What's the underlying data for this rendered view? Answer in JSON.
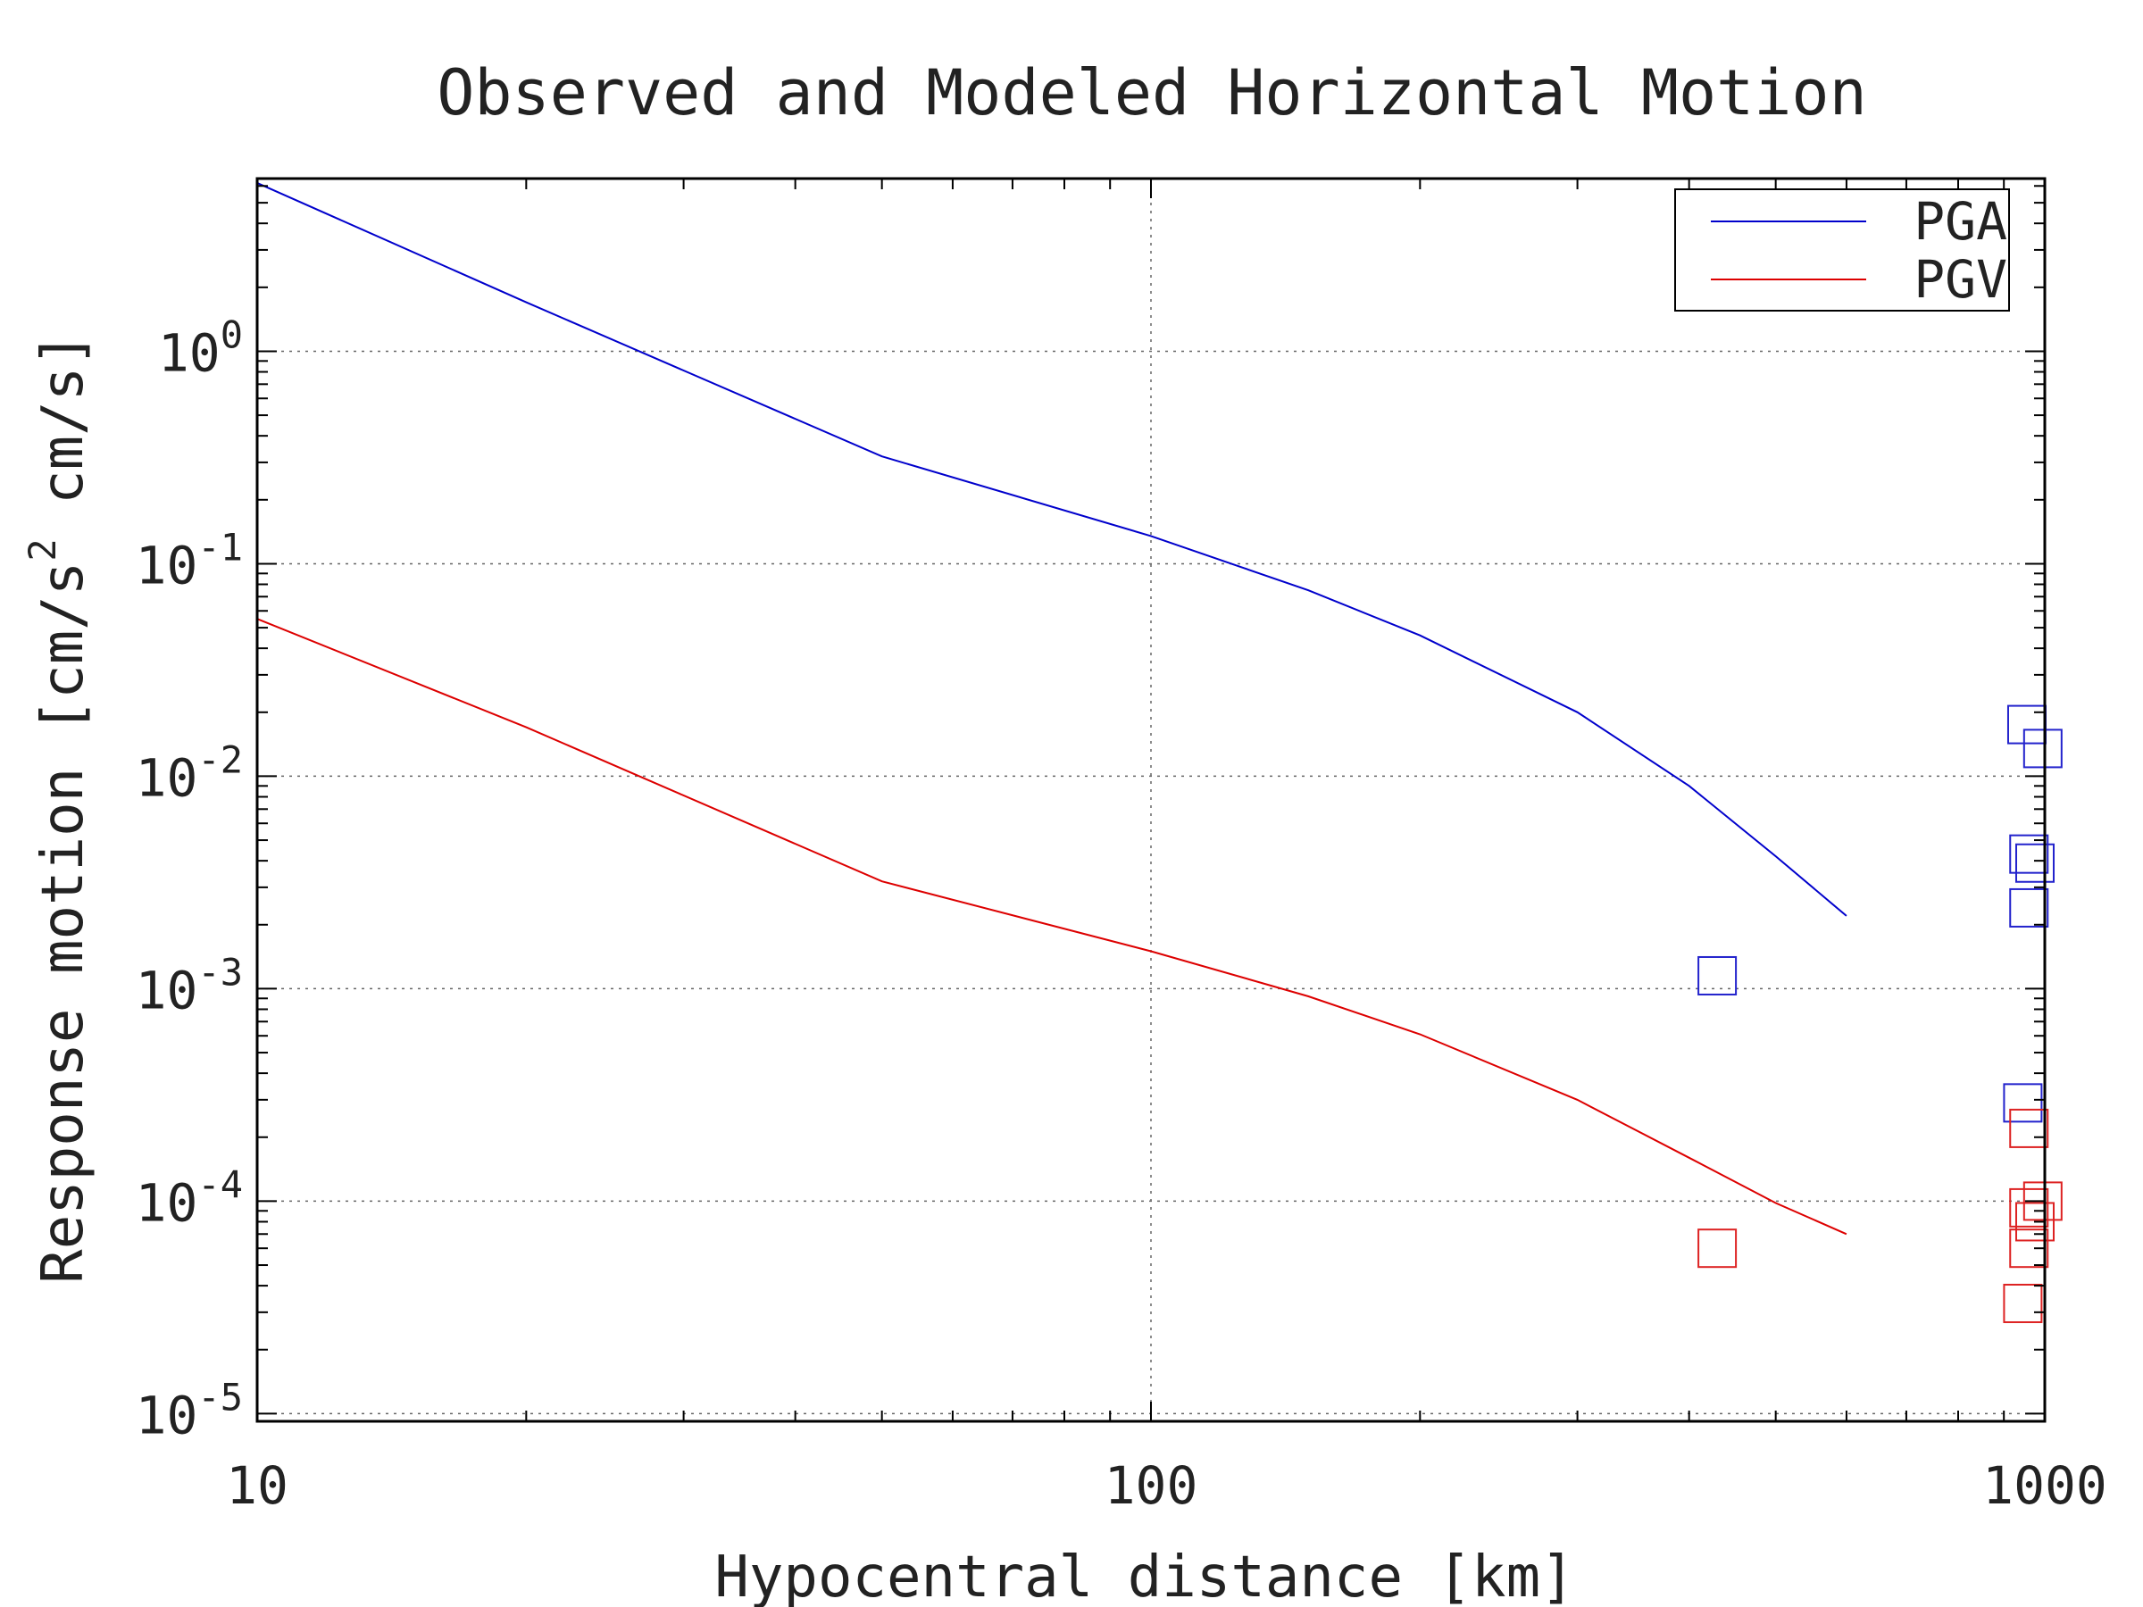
{
  "chart_data": {
    "type": "line",
    "title": "Observed and Modeled Horizontal Motion",
    "xlabel": "Hypocentral distance [km]",
    "ylabel_main": "Response motion [cm/s",
    "ylabel_sup": "2",
    "ylabel_tail": " cm/s]",
    "xscale": "log",
    "yscale": "log",
    "xlim": [
      10,
      1000
    ],
    "ylim": [
      9.2e-06,
      6.5
    ],
    "x_ticks": [
      {
        "value": 10,
        "label": "10"
      },
      {
        "value": 100,
        "label": "100"
      },
      {
        "value": 1000,
        "label": "1000"
      }
    ],
    "y_ticks": [
      {
        "value": 1,
        "base": "10",
        "exp": "0"
      },
      {
        "value": 0.1,
        "base": "10",
        "exp": "-1"
      },
      {
        "value": 0.01,
        "base": "10",
        "exp": "-2"
      },
      {
        "value": 0.001,
        "base": "10",
        "exp": "-3"
      },
      {
        "value": 0.0001,
        "base": "10",
        "exp": "-4"
      },
      {
        "value": 1e-05,
        "base": "10",
        "exp": "-5"
      }
    ],
    "grid": true,
    "legend_position": "top-right",
    "series": [
      {
        "name": "PGA",
        "color": "#0000cc",
        "x": [
          10,
          20,
          50,
          100,
          150,
          200,
          300,
          400,
          500,
          600
        ],
        "y": [
          6.2,
          1.7,
          0.32,
          0.135,
          0.075,
          0.046,
          0.02,
          0.009,
          0.0042,
          0.0022
        ]
      },
      {
        "name": "PGV",
        "color": "#dd0000",
        "x": [
          10,
          20,
          50,
          100,
          150,
          200,
          300,
          400,
          500,
          600
        ],
        "y": [
          0.055,
          0.017,
          0.0032,
          0.0015,
          0.00092,
          0.00061,
          0.0003,
          0.00016,
          9.8e-05,
          7e-05
        ]
      }
    ],
    "observed": [
      {
        "series": "PGA",
        "color": "#2222cc",
        "points": [
          {
            "x": 430,
            "y": 0.00115
          },
          {
            "x": 955,
            "y": 0.0175
          },
          {
            "x": 995,
            "y": 0.0135
          },
          {
            "x": 960,
            "y": 0.0043
          },
          {
            "x": 975,
            "y": 0.0039
          },
          {
            "x": 960,
            "y": 0.0024
          },
          {
            "x": 945,
            "y": 0.00029
          }
        ]
      },
      {
        "series": "PGV",
        "color": "#dd2222",
        "points": [
          {
            "x": 430,
            "y": 6e-05
          },
          {
            "x": 960,
            "y": 0.00022
          },
          {
            "x": 995,
            "y": 0.0001
          },
          {
            "x": 960,
            "y": 9.3e-05
          },
          {
            "x": 975,
            "y": 8e-05
          },
          {
            "x": 960,
            "y": 6e-05
          },
          {
            "x": 945,
            "y": 3.3e-05
          }
        ]
      }
    ]
  }
}
